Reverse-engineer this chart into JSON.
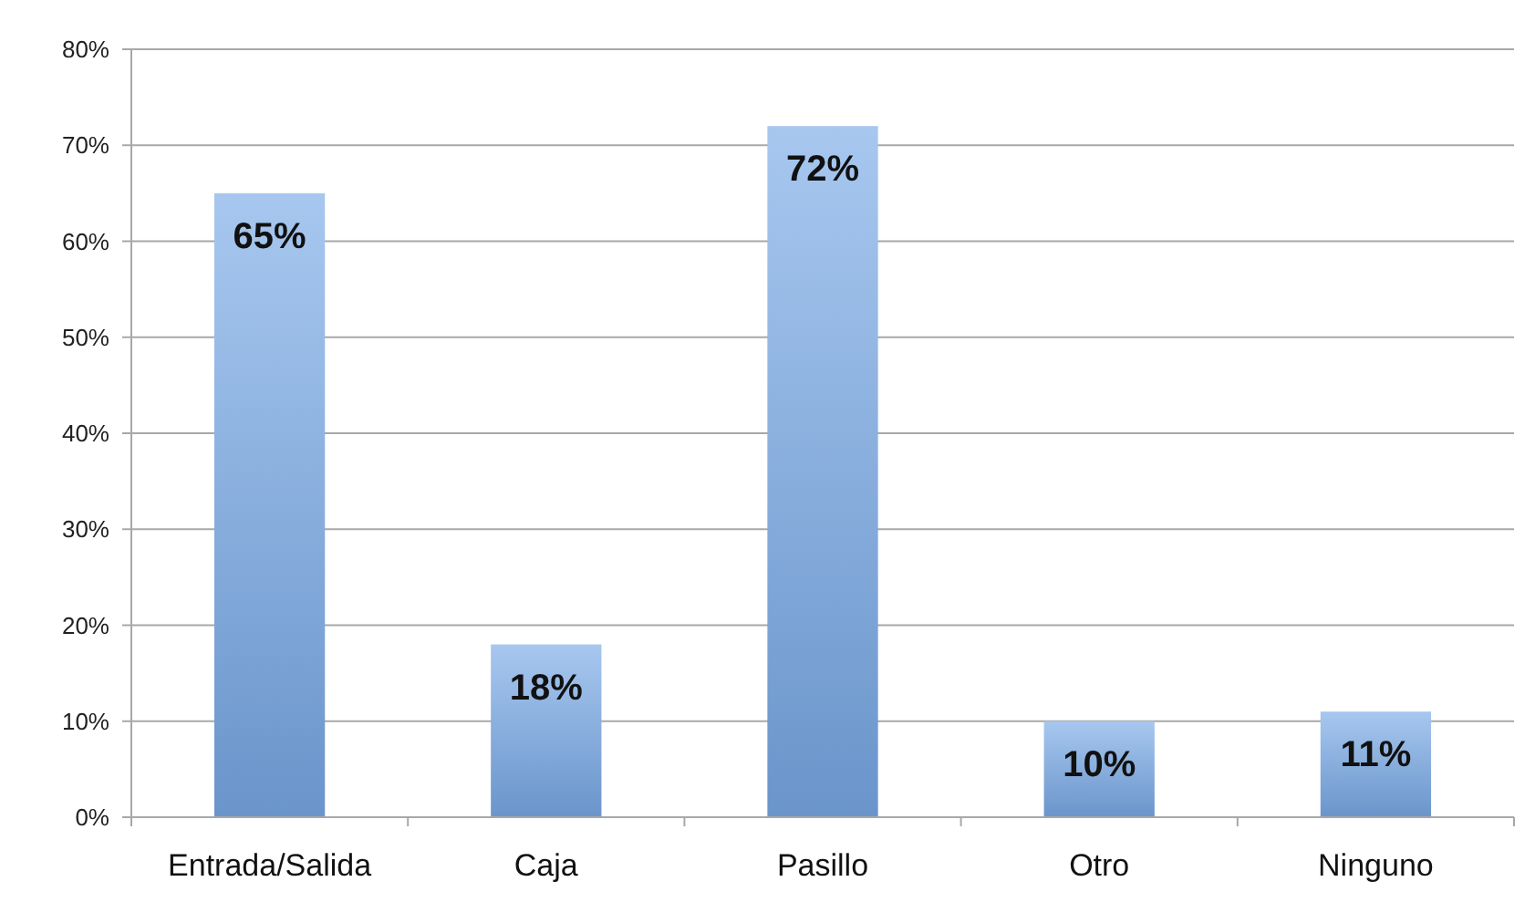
{
  "chart_data": {
    "type": "bar",
    "categories": [
      "Entrada/Salida",
      "Caja",
      "Pasillo",
      "Otro",
      "Ninguno"
    ],
    "values": [
      65,
      18,
      72,
      10,
      11
    ],
    "value_labels": [
      "65%",
      "18%",
      "72%",
      "10%",
      "11%"
    ],
    "color": "#78a9e6",
    "ylim": [
      0,
      80
    ],
    "yticks": [
      {
        "value": 0,
        "label": "0%"
      },
      {
        "value": 10,
        "label": "10%"
      },
      {
        "value": 20,
        "label": "20%"
      },
      {
        "value": 30,
        "label": "30%"
      },
      {
        "value": 40,
        "label": "40%"
      },
      {
        "value": 50,
        "label": "50%"
      },
      {
        "value": 60,
        "label": "60%"
      },
      {
        "value": 70,
        "label": "70%"
      },
      {
        "value": 80,
        "label": "80%"
      }
    ],
    "grid": "y"
  }
}
